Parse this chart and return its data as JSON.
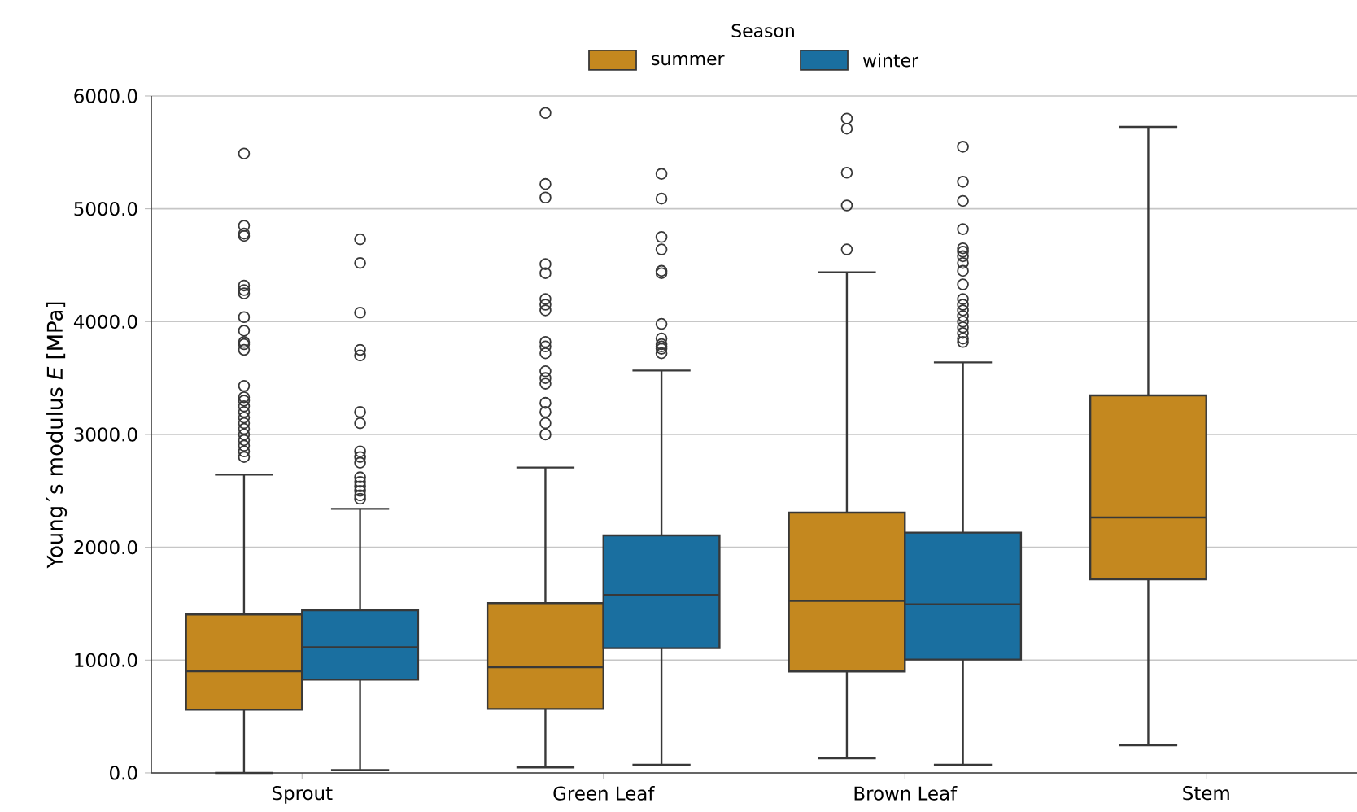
{
  "chart_data": {
    "type": "box",
    "ylabel": "Young´s modulus *E* [MPa]",
    "legend_title": "Season",
    "legend": "top",
    "grid": "y",
    "categories": [
      "Sprout",
      "Green Leaf",
      "Brown Leaf",
      "Stem"
    ],
    "ylim": [
      0,
      6000
    ],
    "yticks": [
      {
        "value": 0,
        "label": "0.0"
      },
      {
        "value": 1000,
        "label": "1000.0"
      },
      {
        "value": 2000,
        "label": "2000.0"
      },
      {
        "value": 3000,
        "label": "3000.0"
      },
      {
        "value": 4000,
        "label": "4000.0"
      },
      {
        "value": 5000,
        "label": "5000.0"
      },
      {
        "value": 6000,
        "label": "6000.0"
      }
    ],
    "series": [
      {
        "name": "summer",
        "color": "#c4881f",
        "boxes": [
          {
            "low": 0,
            "q1": 560,
            "median": 900,
            "q3": 1404,
            "high": 2644,
            "outliers": [
              5490,
              4850,
              4780,
              4760,
              4320,
              4280,
              4250,
              4040,
              3920,
              3820,
              3800,
              3750,
              3430,
              3330,
              3300,
              3250,
              3200,
              3150,
              3100,
              3050,
              3000,
              2950,
              2900,
              2850,
              2800
            ]
          },
          {
            "low": 48,
            "q1": 567,
            "median": 937,
            "q3": 1505,
            "high": 2707,
            "outliers": [
              5850,
              5220,
              5100,
              4510,
              4430,
              4200,
              4150,
              4100,
              3820,
              3780,
              3720,
              3560,
              3500,
              3450,
              3280,
              3200,
              3100,
              3000
            ]
          },
          {
            "low": 130,
            "q1": 899,
            "median": 1524,
            "q3": 2308,
            "high": 4438,
            "outliers": [
              5800,
              5710,
              5320,
              5030,
              4640
            ]
          },
          {
            "low": 245,
            "q1": 1716,
            "median": 2264,
            "q3": 3346,
            "high": 5726
          }
        ]
      },
      {
        "name": "winter",
        "color": "#1a6fa0",
        "boxes": [
          {
            "low": 25,
            "q1": 827,
            "median": 1115,
            "q3": 1442,
            "high": 2341,
            "outliers": [
              4730,
              4520,
              4080,
              3750,
              3700,
              3200,
              3100,
              2850,
              2800,
              2750,
              2620,
              2580,
              2540,
              2500,
              2460,
              2430
            ]
          },
          {
            "low": 72,
            "q1": 1106,
            "median": 1577,
            "q3": 2106,
            "high": 3567,
            "outliers": [
              5310,
              5090,
              4750,
              4640,
              4450,
              4430,
              3980,
              3850,
              3800,
              3780,
              3760,
              3720
            ]
          },
          {
            "low": 72,
            "q1": 1005,
            "median": 1495,
            "q3": 2130,
            "high": 3639,
            "outliers": [
              5550,
              5240,
              5070,
              4820,
              4650,
              4620,
              4580,
              4520,
              4450,
              4330,
              4200,
              4150,
              4100,
              4050,
              4000,
              3950,
              3900,
              3850,
              3820
            ]
          },
          null
        ]
      }
    ]
  }
}
